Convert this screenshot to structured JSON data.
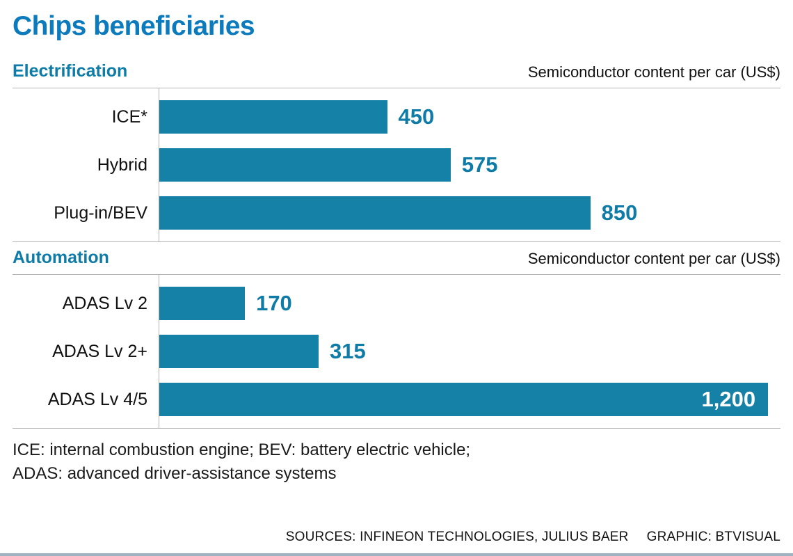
{
  "title": "Chips beneficiaries",
  "colors": {
    "title_blue": "#0c7bbd",
    "accent_teal": "#0f7ca8",
    "bar_fill": "#1581a7",
    "rule_gray": "#b3b3b3",
    "bottom_rule": "#9fb3c0"
  },
  "chart_data": [
    {
      "type": "bar",
      "orientation": "horizontal",
      "section": "Electrification",
      "axis_note": "Semiconductor content per car (US$)",
      "categories": [
        "ICE*",
        "Hybrid",
        "Plug-in/BEV"
      ],
      "values": [
        450,
        575,
        850
      ],
      "value_labels": [
        "450",
        "575",
        "850"
      ],
      "xlim": [
        0,
        1200
      ],
      "grid": "off",
      "legend": "none"
    },
    {
      "type": "bar",
      "orientation": "horizontal",
      "section": "Automation",
      "axis_note": "Semiconductor content per car (US$)",
      "categories": [
        "ADAS Lv 2",
        "ADAS Lv 2+",
        "ADAS Lv 4/5"
      ],
      "values": [
        170,
        315,
        1200
      ],
      "value_labels": [
        "170",
        "315",
        "1,200"
      ],
      "xlim": [
        0,
        1200
      ],
      "grid": "off",
      "legend": "none"
    }
  ],
  "footnotes": [
    "ICE: internal combustion engine; BEV: battery electric vehicle;",
    "ADAS: advanced driver-assistance systems"
  ],
  "credits": {
    "sources": "SOURCES: INFINEON TECHNOLOGIES, JULIUS BAER",
    "graphic": "GRAPHIC: BTVISUAL"
  }
}
